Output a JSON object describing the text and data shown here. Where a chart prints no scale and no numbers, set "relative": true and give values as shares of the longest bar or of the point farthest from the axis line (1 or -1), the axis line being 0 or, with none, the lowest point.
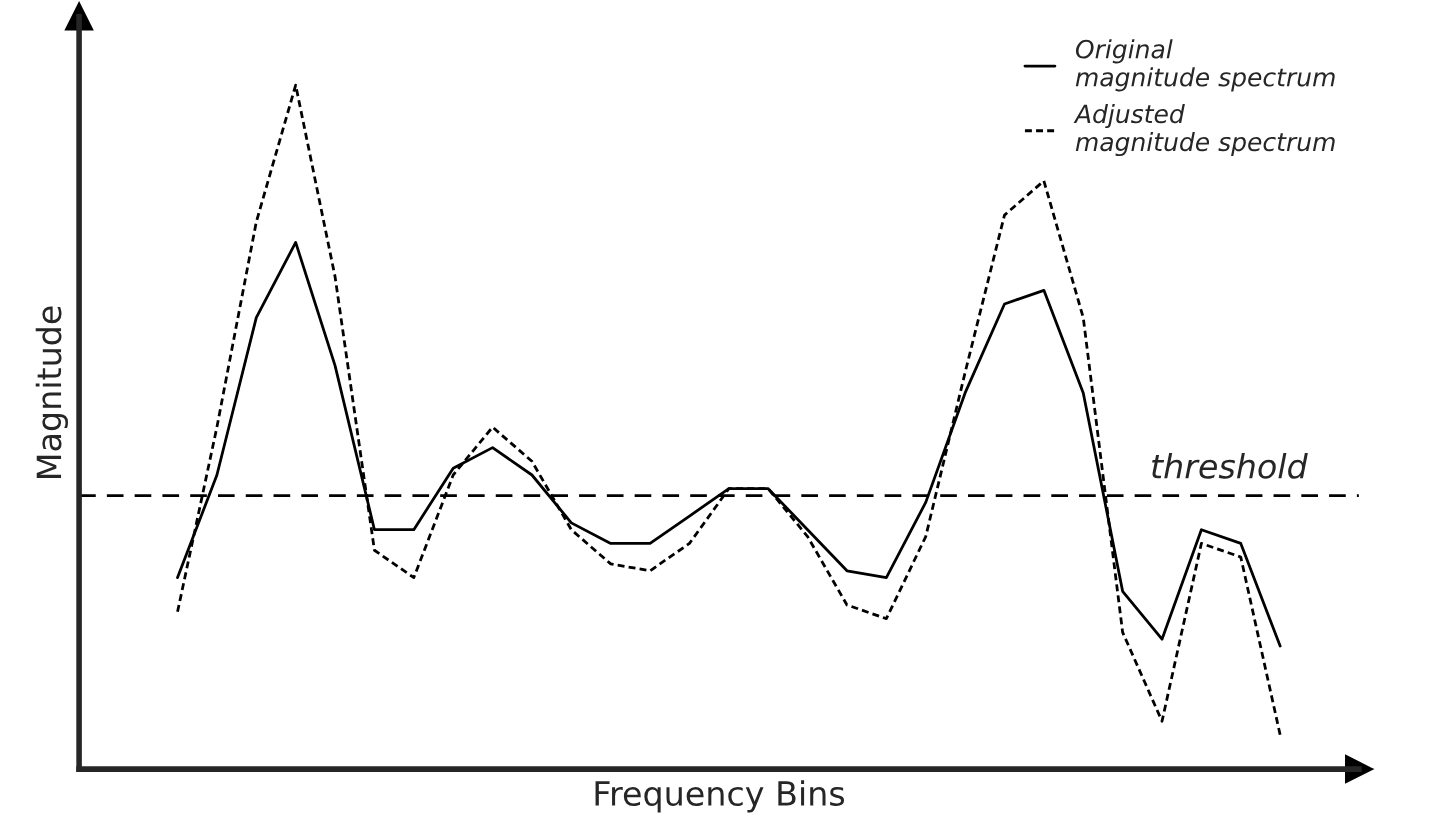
{
  "chart_data": {
    "type": "line",
    "relative": true,
    "xlabel": "Frequency Bins",
    "ylabel": "Magnitude",
    "categories": [
      null,
      null,
      null,
      null,
      null,
      null,
      null,
      null,
      null,
      null,
      null,
      null,
      null,
      null,
      null,
      null,
      null,
      null,
      null,
      null,
      null,
      null,
      null,
      null,
      null,
      null,
      null,
      null,
      null,
      null
    ],
    "series": [
      {
        "name": "Original\nmagnitude spectrum",
        "color": "#000000",
        "line_style": "solid",
        "values": [
          null,
          0.28,
          0.43,
          0.66,
          0.77,
          0.59,
          0.35,
          0.35,
          0.44,
          0.47,
          0.43,
          0.36,
          0.33,
          0.33,
          0.37,
          0.41,
          0.41,
          0.35,
          0.29,
          0.28,
          0.39,
          0.55,
          0.68,
          0.7,
          0.55,
          0.26,
          0.19,
          0.35,
          0.33,
          0.18
        ]
      },
      {
        "name": "Adjusted\nmagnitude spectrum",
        "color": "#000000",
        "line_style": "dotted",
        "values": [
          null,
          0.23,
          0.5,
          0.8,
          1.0,
          0.72,
          0.32,
          0.28,
          0.43,
          0.5,
          0.45,
          0.35,
          0.3,
          0.29,
          0.33,
          0.41,
          0.41,
          0.34,
          0.24,
          0.22,
          0.34,
          0.58,
          0.81,
          0.86,
          0.66,
          0.2,
          0.07,
          0.33,
          0.31,
          0.05
        ]
      }
    ],
    "ref_lines": [
      {
        "axis": "y",
        "value": 0.4,
        "label": "threshold",
        "color": "#000000",
        "line_style": "dashed"
      }
    ],
    "legend": "top right"
  }
}
